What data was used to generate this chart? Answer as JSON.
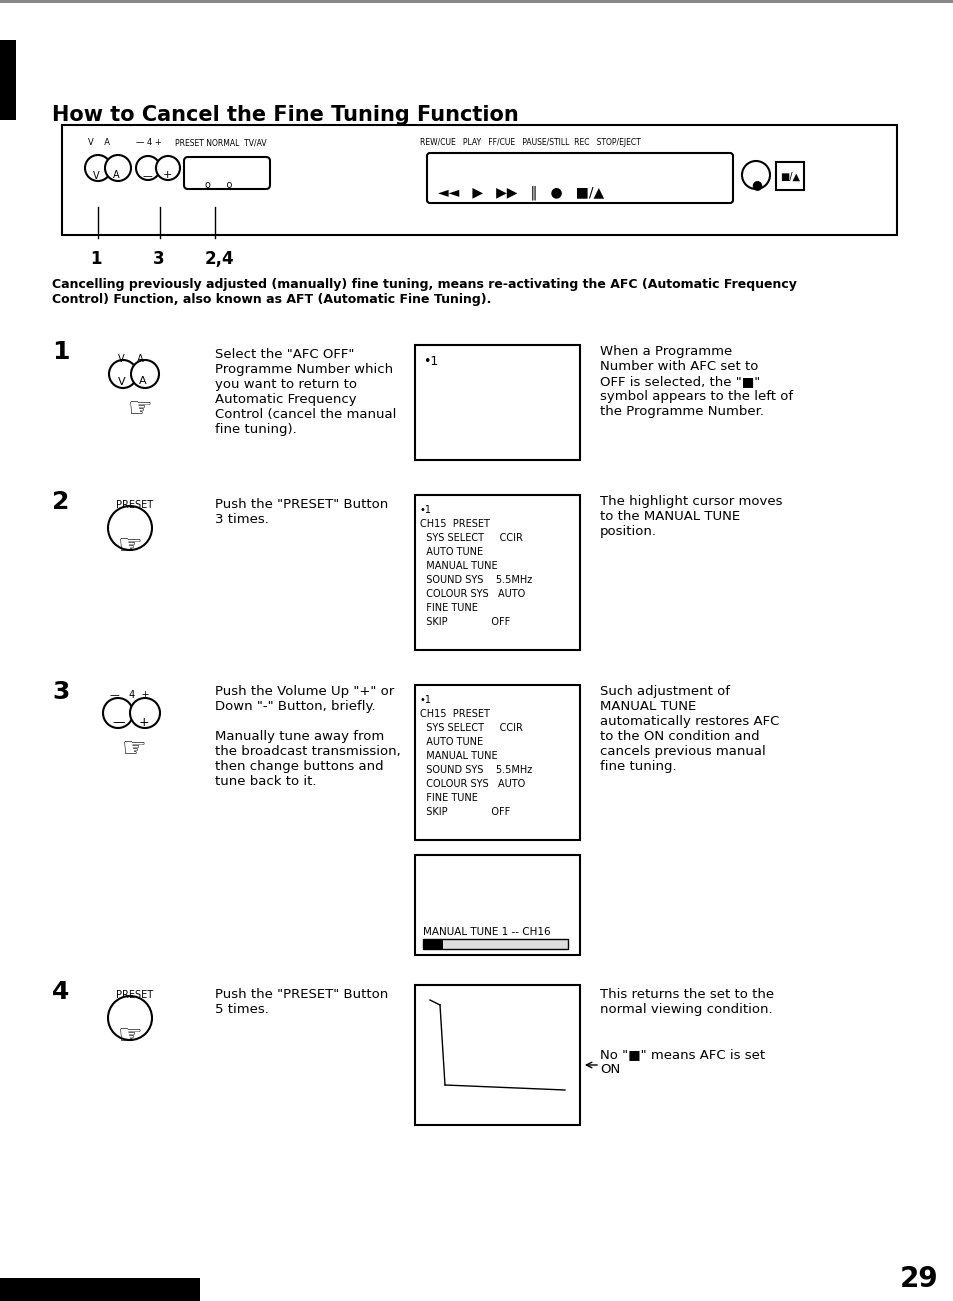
{
  "title": "How to Cancel the Fine Tuning Function",
  "bg_color": "#ffffff",
  "intro_text": "Cancelling previously adjusted (manually) fine tuning, means re-activating the AFC (Automatic Frequency\nControl) Function, also known as AFT (Automatic Fine Tuning).",
  "step1_num": "1",
  "step1_text": "Select the \"AFC OFF\"\nProgramme Number which\nyou want to return to\nAutomatic Frequency\nControl (cancel the manual\nfine tuning).",
  "step1_note": "When a Programme\nNumber with AFC set to\nOFF is selected, the \"■\"\nsymbol appears to the left of\nthe Programme Number.",
  "step1_screen": "•1",
  "step2_num": "2",
  "step2_text": "Push the \"PRESET\" Button\n3 times.",
  "step2_note": "The highlight cursor moves\nto the MANUAL TUNE\nposition.",
  "step2_screen_lines": [
    "•1",
    "CH15  PRESET",
    "  SYS SELECT     CCIR",
    "  AUTO TUNE",
    "  MANUAL TUNE",
    "  SOUND SYS    5.5MHz",
    "  COLOUR SYS   AUTO",
    "  FINE TUNE",
    "  SKIP              OFF"
  ],
  "step3_num": "3",
  "step3_text": "Push the Volume Up \"+\" or\nDown \"-\" Button, briefly.\n\nManually tune away from\nthe broadcast transmission,\nthen change buttons and\ntune back to it.",
  "step3_note": "Such adjustment of\nMANUAL TUNE\nautomatically restores AFC\nto the ON condition and\ncancels previous manual\nfine tuning.",
  "step3_screen_lines": [
    "•1",
    "CH15  PRESET",
    "  SYS SELECT     CCIR",
    "  AUTO TUNE",
    "  MANUAL TUNE",
    "  SOUND SYS    5.5MHz",
    "  COLOUR SYS   AUTO",
    "  FINE TUNE",
    "  SKIP              OFF"
  ],
  "step3_screen2_text": "MANUAL TUNE 1 -- CH16",
  "step4_num": "4",
  "step4_text": "Push the \"PRESET\" Button\n5 times.",
  "step4_note": "This returns the set to the\nnormal viewing condition.",
  "step4_note2": "No \"■\" means AFC is set\nON",
  "page_num": "29"
}
